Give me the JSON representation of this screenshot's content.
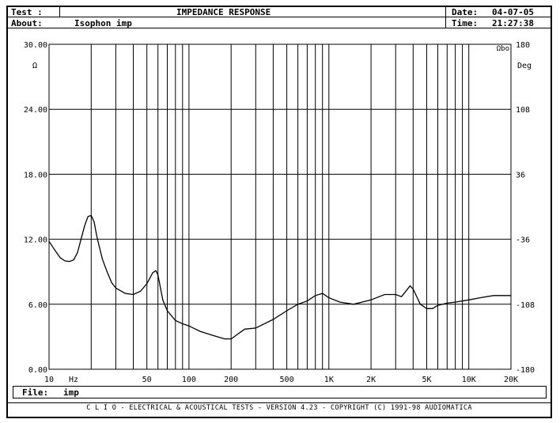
{
  "header": {
    "test_label": "Test :",
    "title": "IMPEDANCE RESPONSE",
    "date_label": "Date:",
    "date_value": "04-07-05",
    "about_label": "About:",
    "about_value": "Isophon imp",
    "time_label": "Time:",
    "time_value": "21:27:38"
  },
  "file": {
    "label": "File:",
    "value": "imp"
  },
  "footer": {
    "text": "C L I O  -  ELECTRICAL & ACOUSTICAL TESTS  -  VERSION 4.23  -  COPYRIGHT (C) 1991-98 AUDIOMATICA"
  },
  "chart_data": {
    "type": "line",
    "x_scale": "log",
    "xlim": [
      10,
      20000
    ],
    "ylim": [
      0,
      30
    ],
    "y2lim": [
      -180,
      180
    ],
    "xlabel": "Hz",
    "ylabel": "Ω",
    "y2label": "Deg",
    "corner_label": "Ωbo",
    "y_ticks": [
      "0.00",
      "6.00",
      "12.00",
      "18.00",
      "24.00",
      "30.00"
    ],
    "y_tick_values": [
      0,
      6,
      12,
      18,
      24,
      30
    ],
    "y2_ticks": [
      "-180",
      "-108",
      "-36",
      "36",
      "108",
      "180"
    ],
    "x_tick_labels": [
      {
        "value": 10,
        "label": "10"
      },
      {
        "value": 50,
        "label": "50"
      },
      {
        "value": 100,
        "label": "100"
      },
      {
        "value": 200,
        "label": "200"
      },
      {
        "value": 500,
        "label": "500"
      },
      {
        "value": 1000,
        "label": "1K"
      },
      {
        "value": 2000,
        "label": "2K"
      },
      {
        "value": 5000,
        "label": "5K"
      },
      {
        "value": 10000,
        "label": "10K"
      },
      {
        "value": 20000,
        "label": "20K"
      }
    ],
    "x_gridlines": [
      20,
      30,
      40,
      50,
      60,
      70,
      80,
      90,
      100,
      200,
      300,
      400,
      500,
      600,
      700,
      800,
      900,
      1000,
      2000,
      3000,
      4000,
      5000,
      6000,
      7000,
      8000,
      9000,
      10000,
      20000
    ],
    "grid": true,
    "series": [
      {
        "color": "#000000",
        "x": [
          10,
          11,
          12,
          13,
          14,
          15,
          16,
          17,
          18,
          19,
          20,
          21,
          22,
          24,
          26,
          28,
          30,
          35,
          40,
          45,
          50,
          52,
          55,
          58,
          60,
          65,
          70,
          80,
          90,
          100,
          120,
          150,
          180,
          200,
          250,
          300,
          400,
          500,
          600,
          700,
          800,
          900,
          1000,
          1200,
          1500,
          2000,
          2500,
          3000,
          3300,
          3500,
          3800,
          4000,
          4500,
          5000,
          5500,
          6000,
          7000,
          8000,
          10000,
          12000,
          15000,
          20000
        ],
        "values": [
          11.8,
          11.0,
          10.3,
          10.0,
          9.95,
          10.1,
          10.8,
          12.1,
          13.3,
          14.1,
          14.2,
          13.6,
          12.2,
          10.2,
          9.0,
          8.0,
          7.5,
          7.0,
          6.9,
          7.2,
          7.9,
          8.3,
          8.9,
          9.1,
          8.7,
          6.4,
          5.4,
          4.5,
          4.2,
          4.0,
          3.5,
          3.1,
          2.8,
          2.8,
          3.7,
          3.8,
          4.6,
          5.4,
          6.0,
          6.3,
          6.8,
          7.0,
          6.6,
          6.2,
          6.0,
          6.4,
          6.9,
          6.9,
          6.7,
          7.1,
          7.7,
          7.4,
          6.0,
          5.6,
          5.6,
          5.9,
          6.1,
          6.2,
          6.4,
          6.6,
          6.8,
          6.8
        ]
      }
    ]
  }
}
